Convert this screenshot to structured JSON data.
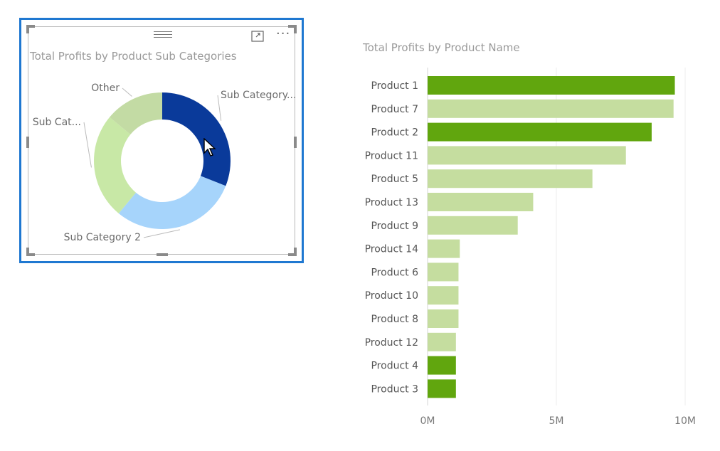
{
  "chart_data": [
    {
      "type": "pie",
      "donut": true,
      "title": "Total Profits by Product Sub Categories",
      "slices": [
        {
          "label": "Sub Category...",
          "value": 31,
          "color": "#0a3a9a"
        },
        {
          "label": "Sub Category 2",
          "value": 30,
          "color": "#a6d4fb"
        },
        {
          "label": "Sub Cat...",
          "value": 25,
          "color": "#c8e8a6"
        },
        {
          "label": "Other",
          "value": 14,
          "color": "#c3dba4"
        }
      ]
    },
    {
      "type": "bar",
      "orientation": "horizontal",
      "title": "Total Profits by Product Name",
      "categories": [
        "Product 1",
        "Product 7",
        "Product 2",
        "Product 11",
        "Product 5",
        "Product 13",
        "Product 9",
        "Product 14",
        "Product 6",
        "Product 10",
        "Product 8",
        "Product 12",
        "Product 4",
        "Product 3"
      ],
      "values": [
        9.6,
        9.55,
        8.7,
        7.7,
        6.4,
        4.1,
        3.5,
        1.25,
        1.2,
        1.2,
        1.2,
        1.1,
        1.1,
        1.1
      ],
      "highlighted": [
        true,
        false,
        true,
        false,
        false,
        false,
        false,
        false,
        false,
        false,
        false,
        false,
        true,
        true
      ],
      "xlim": [
        0,
        10
      ],
      "xticks": [
        0,
        5,
        10
      ],
      "xtick_labels": [
        "0M",
        "5M",
        "10M"
      ],
      "colors": {
        "highlight": "#61a60e",
        "normal": "#c5dd9f"
      },
      "grid": true
    }
  ]
}
